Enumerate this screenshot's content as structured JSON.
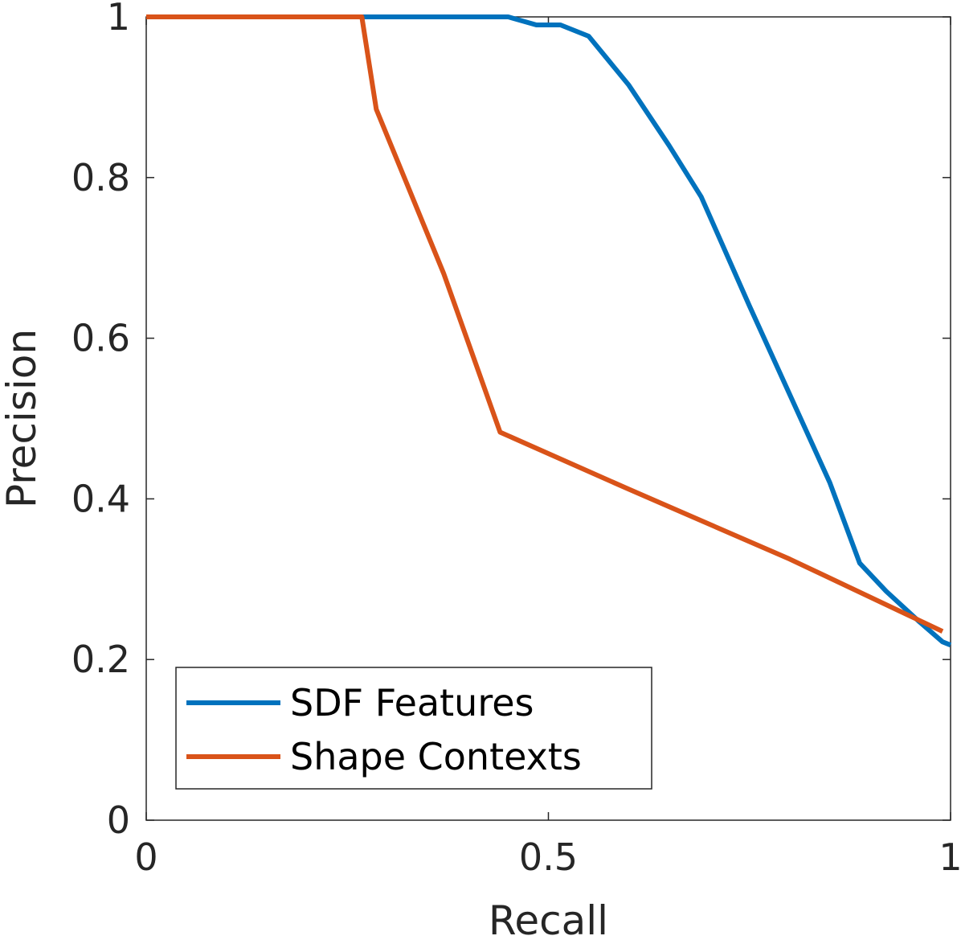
{
  "chart_data": {
    "type": "line",
    "title": "",
    "xlabel": "Recall",
    "ylabel": "Precision",
    "xlim": [
      0,
      1
    ],
    "ylim": [
      0,
      1
    ],
    "xticks": [
      0,
      0.5,
      1
    ],
    "xtick_labels": [
      "0",
      "0.5",
      "1"
    ],
    "yticks": [
      0,
      0.2,
      0.4,
      0.6,
      0.8,
      1
    ],
    "ytick_labels": [
      "0",
      "0.2",
      "0.4",
      "0.6",
      "0.8",
      "1"
    ],
    "grid": false,
    "legend_position": "bottom-left",
    "series": [
      {
        "name": "SDF Features",
        "color": "#0072BD",
        "x": [
          0,
          0.45,
          0.485,
          0.515,
          0.55,
          0.6,
          0.65,
          0.69,
          0.75,
          0.8,
          0.85,
          0.887,
          0.92,
          0.96,
          0.99,
          1.0
        ],
        "y": [
          1.0,
          1.0,
          0.99,
          0.99,
          0.976,
          0.915,
          0.84,
          0.776,
          0.64,
          0.53,
          0.42,
          0.32,
          0.285,
          0.248,
          0.222,
          0.218
        ]
      },
      {
        "name": "Shape Contexts",
        "color": "#D95319",
        "x": [
          0,
          0.268,
          0.286,
          0.37,
          0.44,
          0.6,
          0.8,
          0.99
        ],
        "y": [
          1.0,
          1.0,
          0.885,
          0.68,
          0.483,
          0.412,
          0.325,
          0.235
        ]
      }
    ]
  }
}
